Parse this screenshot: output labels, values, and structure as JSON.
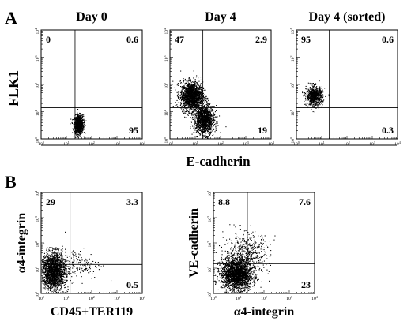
{
  "figure": {
    "panel_a_letter": "A",
    "panel_b_letter": "B",
    "panel_a_xlabel": "E-cadherin",
    "panel_a_ylabel": "FLK1"
  },
  "chart_data": [
    {
      "type": "scatter",
      "title": "Day 0",
      "xlabel": "",
      "ylabel": "FLK1",
      "xscale": "log",
      "yscale": "log",
      "xlim": [
        1,
        10000
      ],
      "ylim": [
        1,
        10000
      ],
      "ticks": [
        "10^0",
        "10^1",
        "10^2",
        "10^3",
        "10^4"
      ],
      "gate": {
        "x": 22,
        "y": 14
      },
      "quadrants": {
        "upper_left": "0",
        "upper_right": "0.6",
        "lower_right": "95"
      },
      "clusters": [
        {
          "cx": 30,
          "cy": 3.5,
          "sx": 0.09,
          "sy": 0.17,
          "n": 1100
        }
      ]
    },
    {
      "type": "scatter",
      "title": "Day 4",
      "xlabel": "",
      "ylabel": "",
      "xscale": "log",
      "yscale": "log",
      "xlim": [
        1,
        10000
      ],
      "ylim": [
        1,
        10000
      ],
      "ticks": [
        "10^0",
        "10^1",
        "10^2",
        "10^3",
        "10^4"
      ],
      "gate": {
        "x": 20,
        "y": 14
      },
      "quadrants": {
        "upper_left": "47",
        "upper_right": "2.9",
        "lower_right": "19"
      },
      "clusters": [
        {
          "cx": 7,
          "cy": 38,
          "sx": 0.22,
          "sy": 0.26,
          "n": 1700
        },
        {
          "cx": 22,
          "cy": 5,
          "sx": 0.2,
          "sy": 0.26,
          "n": 1300
        }
      ]
    },
    {
      "type": "scatter",
      "title": "Day 4 (sorted)",
      "xlabel": "",
      "ylabel": "",
      "xscale": "log",
      "yscale": "log",
      "xlim": [
        1,
        10000
      ],
      "ylim": [
        1,
        10000
      ],
      "ticks": [
        "10^0",
        "10^1",
        "10^2",
        "10^3",
        "10^4"
      ],
      "gate": {
        "x": 20,
        "y": 14
      },
      "quadrants": {
        "upper_left": "95",
        "upper_right": "0.6",
        "lower_right": "0.3"
      },
      "clusters": [
        {
          "cx": 5,
          "cy": 38,
          "sx": 0.16,
          "sy": 0.17,
          "n": 800
        }
      ]
    },
    {
      "type": "scatter",
      "title": "",
      "xlabel": "CD45+TER119",
      "ylabel": "α4-integrin",
      "xscale": "log",
      "yscale": "log",
      "xlim": [
        1,
        10000
      ],
      "ylim": [
        1,
        10000
      ],
      "ticks": [
        "10^0",
        "10^1",
        "10^2",
        "10^3",
        "10^4"
      ],
      "gate": {
        "x": 14,
        "y": 14
      },
      "quadrants": {
        "upper_left": "29",
        "upper_right": "3.3",
        "lower_right": "0.5"
      },
      "clusters": [
        {
          "cx": 3,
          "cy": 8,
          "sx": 0.24,
          "sy": 0.36,
          "n": 2000
        },
        {
          "cx": 30,
          "cy": 15,
          "sx": 0.45,
          "sy": 0.3,
          "n": 180
        }
      ]
    },
    {
      "type": "scatter",
      "title": "",
      "xlabel": "α4-integrin",
      "ylabel": "VE-cadherin",
      "xscale": "log",
      "yscale": "log",
      "xlim": [
        1,
        10000
      ],
      "ylim": [
        1,
        10000
      ],
      "ticks": [
        "10^0",
        "10^1",
        "10^2",
        "10^3",
        "10^4"
      ],
      "gate": {
        "x": 22,
        "y": 15
      },
      "quadrants": {
        "upper_left": "8.8",
        "upper_right": "7.6",
        "lower_right": "23"
      },
      "clusters": [
        {
          "cx": 8,
          "cy": 6,
          "sx": 0.3,
          "sy": 0.3,
          "n": 2200
        },
        {
          "cx": 20,
          "cy": 40,
          "sx": 0.45,
          "sy": 0.4,
          "n": 500
        }
      ]
    }
  ]
}
